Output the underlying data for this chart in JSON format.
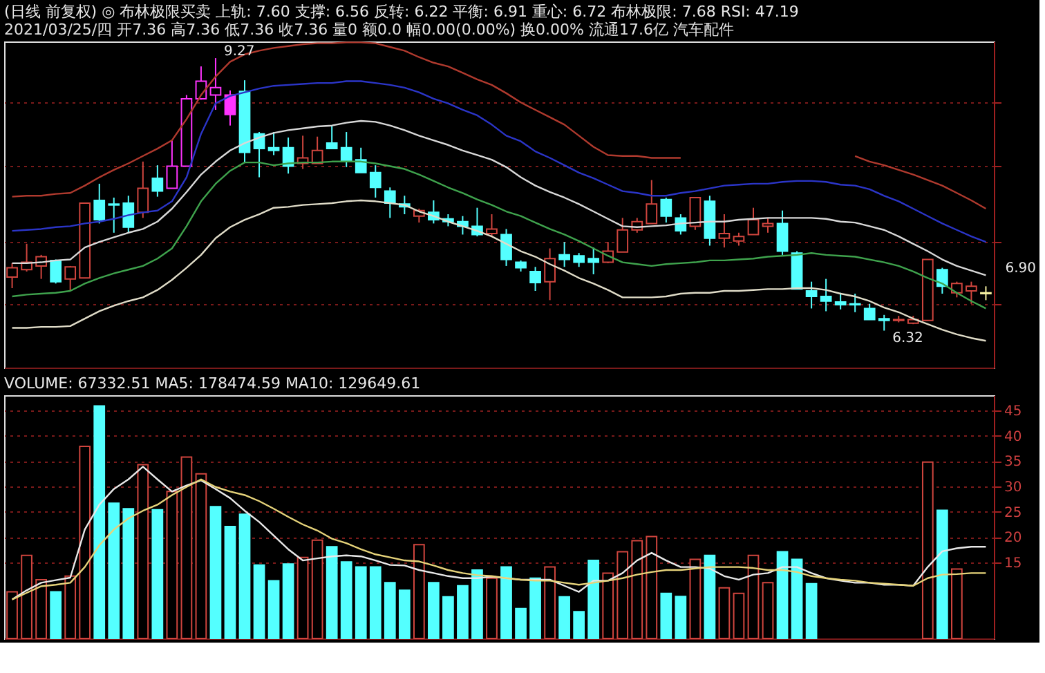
{
  "chart_data": [
    {
      "type": "candlestick",
      "title": "(日线 前复权) ◎ 布林极限买卖  上轨: 7.60  支撑: 6.56  反转: 6.22  平衡: 6.91  重心: 6.72  布林极限: 7.68  RSI: 47.19",
      "subtitle": "2021/03/25/四 开7.36 高7.36 低7.36 收7.36 量0 额0.0 幅0.00(0.00%) 换0.00% 流通17.6亿 汽车配件",
      "categories": [
        null,
        null,
        null,
        null,
        null,
        null,
        null,
        null,
        null,
        null,
        null,
        null,
        null,
        null,
        null,
        null,
        null,
        null,
        null,
        null,
        null,
        null,
        null,
        null,
        null,
        null,
        null,
        null,
        null,
        null,
        null,
        null,
        null,
        null,
        null,
        null,
        null,
        null,
        null,
        null,
        null,
        null,
        null,
        null,
        null,
        null,
        null,
        null,
        null,
        null,
        null,
        null,
        null,
        null,
        null,
        null,
        null,
        null,
        null,
        null,
        null,
        null,
        null,
        null,
        null,
        null,
        null,
        null
      ],
      "ohlc": [
        [
          6.9,
          7.05,
          6.78,
          7.0
        ],
        [
          6.98,
          7.26,
          6.96,
          7.06
        ],
        [
          7.02,
          7.14,
          6.88,
          7.12
        ],
        [
          7.08,
          7.09,
          6.83,
          6.85
        ],
        [
          6.88,
          7.02,
          6.75,
          7.01
        ],
        [
          6.89,
          7.7,
          6.89,
          7.7
        ],
        [
          7.73,
          7.91,
          7.48,
          7.52
        ],
        [
          7.69,
          7.76,
          7.38,
          7.68
        ],
        [
          7.7,
          7.78,
          7.38,
          7.44
        ],
        [
          7.6,
          8.15,
          7.54,
          7.86
        ],
        [
          7.97,
          8.11,
          7.77,
          7.83
        ],
        [
          7.86,
          8.38,
          7.86,
          8.1
        ],
        [
          8.1,
          8.87,
          8.1,
          8.83
        ],
        [
          8.83,
          9.18,
          8.82,
          9.02
        ],
        [
          8.87,
          9.27,
          8.71,
          8.95
        ],
        [
          8.87,
          8.92,
          8.54,
          8.66
        ],
        [
          8.91,
          9.03,
          8.14,
          8.25
        ],
        [
          8.45,
          8.47,
          7.98,
          8.29
        ],
        [
          8.3,
          8.47,
          8.22,
          8.27
        ],
        [
          8.3,
          8.41,
          8.02,
          8.1
        ],
        [
          8.13,
          8.43,
          8.07,
          8.19
        ],
        [
          8.13,
          8.42,
          8.13,
          8.27
        ],
        [
          8.35,
          8.54,
          8.29,
          8.29
        ],
        [
          8.3,
          8.47,
          8.09,
          8.15
        ],
        [
          8.17,
          8.3,
          8.03,
          8.03
        ],
        [
          8.03,
          8.11,
          7.76,
          7.87
        ],
        [
          7.83,
          7.87,
          7.54,
          7.7
        ],
        [
          7.69,
          7.78,
          7.58,
          7.66
        ],
        [
          7.56,
          7.64,
          7.49,
          7.62
        ],
        [
          7.6,
          7.73,
          7.48,
          7.52
        ],
        [
          7.53,
          7.58,
          7.45,
          7.5
        ],
        [
          7.5,
          7.56,
          7.36,
          7.45
        ],
        [
          7.45,
          7.65,
          7.34,
          7.36
        ],
        [
          7.37,
          7.58,
          7.34,
          7.42
        ],
        [
          7.36,
          7.42,
          7.02,
          7.09
        ],
        [
          7.06,
          7.08,
          6.96,
          7.0
        ],
        [
          6.96,
          7.01,
          6.75,
          6.84
        ],
        [
          6.85,
          7.21,
          6.65,
          7.1
        ],
        [
          7.14,
          7.28,
          7.01,
          7.09
        ],
        [
          7.13,
          7.16,
          7.01,
          7.06
        ],
        [
          7.1,
          7.22,
          6.93,
          7.06
        ],
        [
          7.06,
          7.28,
          7.05,
          7.18
        ],
        [
          7.17,
          7.54,
          7.17,
          7.41
        ],
        [
          7.41,
          7.54,
          7.38,
          7.5
        ],
        [
          7.48,
          7.95,
          7.48,
          7.69
        ],
        [
          7.74,
          7.76,
          7.49,
          7.56
        ],
        [
          7.54,
          7.58,
          7.36,
          7.4
        ],
        [
          7.45,
          7.76,
          7.41,
          7.76
        ],
        [
          7.72,
          7.78,
          7.24,
          7.32
        ],
        [
          7.32,
          7.58,
          7.22,
          7.37
        ],
        [
          7.29,
          7.38,
          7.24,
          7.34
        ],
        [
          7.36,
          7.65,
          7.36,
          7.52
        ],
        [
          7.45,
          7.54,
          7.38,
          7.48
        ],
        [
          7.48,
          7.62,
          7.14,
          7.18
        ],
        [
          7.16,
          7.18,
          6.77,
          6.77
        ],
        [
          6.75,
          6.85,
          6.56,
          6.69
        ],
        [
          6.69,
          6.88,
          6.53,
          6.64
        ],
        [
          6.63,
          6.73,
          6.55,
          6.6
        ],
        [
          6.61,
          6.72,
          6.52,
          6.6
        ],
        [
          6.56,
          6.61,
          6.44,
          6.44
        ],
        [
          6.45,
          6.49,
          6.32,
          6.43
        ],
        [
          6.43,
          6.48,
          6.41,
          6.44
        ],
        [
          6.4,
          6.48,
          6.39,
          6.44
        ],
        [
          6.43,
          7.09,
          6.43,
          7.09
        ],
        [
          6.98,
          7.0,
          6.72,
          6.8
        ],
        [
          6.73,
          6.85,
          6.68,
          6.83
        ],
        [
          6.75,
          6.85,
          6.61,
          6.8
        ],
        [
          6.72,
          6.8,
          6.65,
          6.73
        ]
      ],
      "colors": [
        "#d0453e",
        "#d0453e",
        "#d0453e",
        "#54ffff",
        "#d0453e",
        "#d0453e",
        "#54ffff",
        "#54ffff",
        "#54ffff",
        "#d0453e",
        "#54ffff",
        "#ff33ff",
        "#ff33ff",
        "#ff33ff",
        "#ff33ff",
        "#ff33ff",
        "#54ffff",
        "#54ffff",
        "#54ffff",
        "#54ffff",
        "#d0453e",
        "#d0453e",
        "#54ffff",
        "#54ffff",
        "#54ffff",
        "#54ffff",
        "#54ffff",
        "#54ffff",
        "#d0453e",
        "#54ffff",
        "#54ffff",
        "#54ffff",
        "#54ffff",
        "#d0453e",
        "#54ffff",
        "#54ffff",
        "#54ffff",
        "#d0453e",
        "#54ffff",
        "#54ffff",
        "#54ffff",
        "#d0453e",
        "#d0453e",
        "#d0453e",
        "#d0453e",
        "#54ffff",
        "#54ffff",
        "#d0453e",
        "#54ffff",
        "#d0453e",
        "#d0453e",
        "#d0453e",
        "#d0453e",
        "#54ffff",
        "#54ffff",
        "#54ffff",
        "#54ffff",
        "#54ffff",
        "#54ffff",
        "#54ffff",
        "#54ffff",
        "#d0453e",
        "#d0453e",
        "#d0453e",
        "#54ffff",
        "#d0453e",
        "#d0453e",
        "#f5f0a0"
      ],
      "series": [
        {
          "type": "line",
          "color": "#b03a2e",
          "values": [
            7.77,
            7.78,
            7.78,
            7.8,
            7.81,
            7.89,
            7.98,
            8.06,
            8.13,
            8.21,
            8.29,
            8.38,
            8.61,
            8.87,
            9.07,
            9.23,
            9.31,
            9.35,
            9.38,
            9.4,
            9.42,
            9.43,
            9.43,
            9.44,
            9.44,
            9.43,
            9.39,
            9.35,
            9.28,
            9.22,
            9.18,
            9.11,
            9.04,
            8.98,
            8.89,
            8.79,
            8.71,
            8.63,
            8.55,
            8.43,
            8.31,
            8.22,
            8.21,
            8.21,
            8.19,
            8.19,
            8.19,
            null,
            null,
            null,
            null,
            null,
            null,
            null,
            null,
            null,
            null,
            null,
            8.21,
            8.15,
            8.11,
            8.06,
            8.01,
            7.95,
            7.89,
            7.81,
            7.73,
            7.64
          ]
        },
        {
          "type": "line",
          "color": "#2b35c8",
          "values": [
            7.4,
            7.41,
            7.42,
            7.44,
            7.45,
            7.48,
            7.5,
            7.53,
            7.57,
            7.6,
            7.62,
            7.72,
            7.98,
            8.45,
            8.78,
            8.86,
            8.9,
            8.94,
            8.97,
            8.98,
            8.99,
            9.0,
            9.0,
            9.02,
            9.02,
            9.0,
            8.98,
            8.95,
            8.9,
            8.83,
            8.78,
            8.71,
            8.65,
            8.55,
            8.43,
            8.37,
            8.26,
            8.19,
            8.11,
            8.03,
            7.97,
            7.9,
            7.83,
            7.81,
            7.78,
            7.78,
            7.81,
            7.83,
            7.86,
            7.89,
            7.9,
            7.91,
            7.91,
            7.93,
            7.94,
            7.94,
            7.93,
            7.9,
            7.89,
            7.85,
            7.78,
            7.72,
            7.64,
            7.56,
            7.48,
            7.41,
            7.34,
            7.28
          ]
        },
        {
          "type": "line",
          "color": "#d8d8d8",
          "values": [
            7.05,
            7.05,
            7.06,
            7.08,
            7.09,
            7.22,
            7.28,
            7.33,
            7.38,
            7.42,
            7.5,
            7.64,
            7.82,
            8.01,
            8.15,
            8.27,
            8.35,
            8.41,
            8.46,
            8.49,
            8.51,
            8.53,
            8.54,
            8.57,
            8.59,
            8.58,
            8.54,
            8.49,
            8.43,
            8.38,
            8.33,
            8.27,
            8.22,
            8.17,
            8.09,
            7.98,
            7.89,
            7.82,
            7.76,
            7.69,
            7.61,
            7.53,
            7.45,
            7.44,
            7.45,
            7.46,
            7.48,
            7.49,
            7.5,
            7.5,
            7.52,
            7.53,
            7.54,
            7.54,
            7.54,
            7.54,
            7.53,
            7.5,
            7.49,
            7.45,
            7.41,
            7.34,
            7.26,
            7.18,
            7.09,
            7.02,
            6.97,
            6.92
          ]
        },
        {
          "type": "line",
          "color": "#3fa34d",
          "values": [
            6.69,
            6.71,
            6.72,
            6.73,
            6.75,
            6.83,
            6.89,
            6.94,
            6.98,
            7.02,
            7.1,
            7.21,
            7.45,
            7.72,
            7.91,
            8.05,
            8.14,
            8.14,
            8.11,
            8.13,
            8.14,
            8.14,
            8.15,
            8.15,
            8.15,
            8.13,
            8.1,
            8.07,
            8.01,
            7.94,
            7.87,
            7.81,
            7.74,
            7.68,
            7.61,
            7.56,
            7.49,
            7.42,
            7.36,
            7.29,
            7.21,
            7.13,
            7.06,
            7.04,
            7.02,
            7.04,
            7.05,
            7.06,
            7.08,
            7.08,
            7.09,
            7.1,
            7.12,
            7.13,
            7.14,
            7.16,
            7.14,
            7.13,
            7.12,
            7.09,
            7.06,
            7.02,
            6.96,
            6.89,
            6.83,
            6.73,
            6.64,
            6.56
          ]
        },
        {
          "type": "line",
          "color": "#e0dcc8",
          "values": [
            6.35,
            6.35,
            6.36,
            6.36,
            6.37,
            6.45,
            6.53,
            6.59,
            6.64,
            6.68,
            6.76,
            6.87,
            7.0,
            7.14,
            7.32,
            7.44,
            7.52,
            7.58,
            7.65,
            7.66,
            7.68,
            7.69,
            7.7,
            7.72,
            7.73,
            7.72,
            7.7,
            7.68,
            7.61,
            7.56,
            7.5,
            7.45,
            7.4,
            7.34,
            7.26,
            7.18,
            7.12,
            7.04,
            6.97,
            6.89,
            6.83,
            6.76,
            6.68,
            6.68,
            6.68,
            6.69,
            6.72,
            6.73,
            6.73,
            6.75,
            6.75,
            6.76,
            6.77,
            6.77,
            6.78,
            6.78,
            6.76,
            6.72,
            6.69,
            6.64,
            6.57,
            6.52,
            6.45,
            6.39,
            6.33,
            6.28,
            6.24,
            6.21
          ]
        }
      ],
      "ylim": [
        5.92,
        9.45
      ],
      "yticks": [
        {
          "value": 6.61,
          "label": null
        },
        {
          "value": 7.28,
          "label": null
        },
        {
          "value": 8.11,
          "label": null
        },
        {
          "value": 8.79,
          "label": null
        }
      ],
      "grid": "y",
      "tick_labels": false,
      "annotations": [
        {
          "text": "9.27",
          "y": 9.27
        },
        "6.32",
        "6.90"
      ]
    },
    {
      "type": "bar",
      "title": "VOLUME: 67332.51  MA5: 178474.59  MA10: 129649.61",
      "categories": [
        null,
        null,
        null,
        null,
        null,
        null,
        null,
        null,
        null,
        null,
        null,
        null,
        null,
        null,
        null,
        null,
        null,
        null,
        null,
        null,
        null,
        null,
        null,
        null,
        null,
        null,
        null,
        null,
        null,
        null,
        null,
        null,
        null,
        null,
        null,
        null,
        null,
        null,
        null,
        null,
        null,
        null,
        null,
        null,
        null,
        null,
        null,
        null,
        null,
        null,
        null,
        null,
        null,
        null,
        null,
        null,
        null,
        null,
        null,
        null,
        null,
        null,
        null,
        null,
        null,
        null,
        null,
        null
      ],
      "series": [
        {
          "type": "bar",
          "values": [
            9.2,
            16.4,
            11.6,
            9.2,
            12.3,
            37.9,
            45.9,
            26.7,
            25.6,
            34.3,
            25.4,
            29.0,
            35.8,
            32.5,
            26.0,
            22.1,
            24.5,
            14.5,
            11.4,
            14.7,
            16.0,
            19.4,
            18.1,
            15.1,
            14.1,
            14.1,
            11.0,
            9.5,
            18.5,
            11.0,
            8.2,
            10.4,
            13.5,
            11.9,
            14.1,
            5.9,
            11.9,
            14.1,
            8.2,
            5.3,
            15.4,
            12.9,
            17.1,
            19.3,
            20.1,
            8.9,
            8.3,
            15.6,
            16.4,
            10.0,
            8.9,
            16.4,
            11.0,
            17.1,
            15.6,
            10.8,
            null,
            null,
            null,
            null,
            null,
            null,
            null,
            34.8,
            25.3,
            13.7,
            null,
            null
          ],
          "colors": [
            "#d0453e",
            "#d0453e",
            "#d0453e",
            "#54ffff",
            "#d0453e",
            "#d0453e",
            "#54ffff",
            "#54ffff",
            "#54ffff",
            "#d0453e",
            "#54ffff",
            "#d0453e",
            "#d0453e",
            "#d0453e",
            "#54ffff",
            "#54ffff",
            "#54ffff",
            "#54ffff",
            "#54ffff",
            "#54ffff",
            "#d0453e",
            "#d0453e",
            "#54ffff",
            "#54ffff",
            "#54ffff",
            "#54ffff",
            "#54ffff",
            "#54ffff",
            "#d0453e",
            "#54ffff",
            "#54ffff",
            "#54ffff",
            "#54ffff",
            "#d0453e",
            "#54ffff",
            "#54ffff",
            "#54ffff",
            "#d0453e",
            "#54ffff",
            "#54ffff",
            "#54ffff",
            "#d0453e",
            "#d0453e",
            "#d0453e",
            "#d0453e",
            "#54ffff",
            "#54ffff",
            "#d0453e",
            "#54ffff",
            "#d0453e",
            "#d0453e",
            "#d0453e",
            "#d0453e",
            "#54ffff",
            "#54ffff",
            "#54ffff",
            "#54ffff",
            "#54ffff",
            "#54ffff",
            "#54ffff",
            "#54ffff",
            "#d0453e",
            "#d0453e",
            "#d0453e",
            "#54ffff",
            "#d0453e",
            "#d0453e",
            "#d0453e"
          ]
        },
        {
          "type": "line",
          "color": "#e8e8e8",
          "values": [
            7.7,
            9.5,
            11.0,
            11.5,
            12.0,
            21.5,
            26.4,
            29.5,
            31.4,
            33.9,
            31.4,
            29.0,
            30.2,
            31.2,
            29.5,
            27.7,
            25.2,
            23.0,
            20.3,
            17.6,
            15.4,
            15.8,
            16.2,
            16.4,
            16.2,
            15.4,
            14.5,
            14.4,
            13.5,
            12.9,
            12.3,
            11.9,
            11.9,
            12.2,
            11.9,
            11.6,
            11.6,
            11.6,
            10.4,
            9.2,
            11.4,
            11.4,
            12.9,
            15.4,
            16.9,
            15.4,
            14.1,
            14.1,
            13.8,
            12.3,
            11.6,
            12.6,
            12.9,
            14.1,
            14.1,
            12.9,
            11.9,
            11.4,
            11.0,
            11.0,
            10.6,
            10.6,
            10.4,
            14.1,
            17.2,
            17.8,
            18.1,
            18.1
          ]
        },
        {
          "type": "line",
          "color": "#e6d37a",
          "values": [
            7.7,
            9.0,
            10.3,
            10.6,
            11.0,
            14.1,
            18.4,
            21.5,
            23.7,
            25.2,
            26.4,
            28.3,
            29.9,
            31.4,
            29.9,
            29.0,
            28.3,
            27.1,
            25.6,
            24.0,
            22.5,
            21.3,
            19.7,
            18.8,
            17.6,
            16.6,
            16.0,
            15.4,
            15.2,
            14.4,
            13.5,
            12.9,
            12.5,
            12.3,
            11.9,
            11.6,
            11.4,
            11.4,
            11.0,
            10.6,
            11.0,
            11.4,
            11.9,
            12.6,
            13.1,
            13.5,
            13.5,
            13.8,
            14.1,
            14.1,
            14.1,
            13.9,
            13.5,
            13.5,
            13.1,
            12.3,
            11.9,
            11.6,
            11.4,
            11.0,
            10.8,
            10.6,
            10.4,
            11.9,
            12.6,
            12.7,
            12.9,
            12.9
          ]
        }
      ],
      "ylim": [
        0,
        48
      ],
      "yticks": [
        15,
        20,
        25,
        30,
        35,
        40,
        45
      ],
      "grid": "y",
      "tick_labels": "y"
    }
  ]
}
